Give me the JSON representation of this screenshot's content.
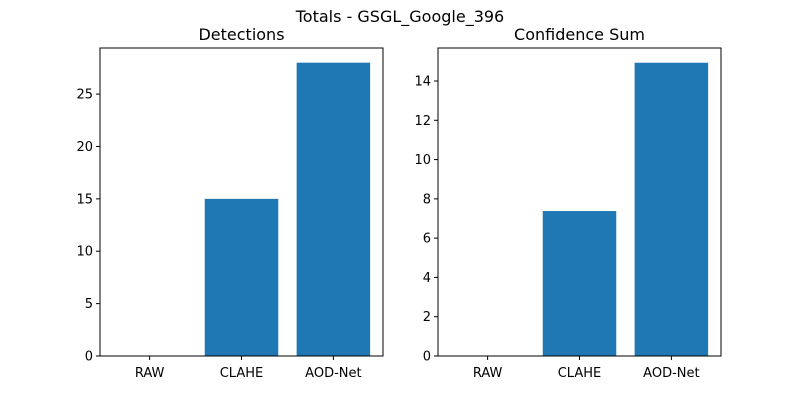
{
  "figure_title": "Totals - GSGL_Google_396",
  "colors": {
    "bar": "#1f77b4",
    "axis": "#000000",
    "background": "#ffffff"
  },
  "chart_data": [
    {
      "type": "bar",
      "title": "Detections",
      "xlabel": "",
      "ylabel": "",
      "categories": [
        "RAW",
        "CLAHE",
        "AOD-Net"
      ],
      "values": [
        0,
        15,
        28
      ],
      "ylim": [
        0,
        29.4
      ],
      "yticks": [
        0,
        5,
        10,
        15,
        20,
        25
      ],
      "grid": false,
      "legend": "none"
    },
    {
      "type": "bar",
      "title": "Confidence Sum",
      "xlabel": "",
      "ylabel": "",
      "categories": [
        "RAW",
        "CLAHE",
        "AOD-Net"
      ],
      "values": [
        0,
        7.38,
        14.93
      ],
      "ylim": [
        0,
        15.68
      ],
      "yticks": [
        0,
        2,
        4,
        6,
        8,
        10,
        12,
        14
      ],
      "grid": false,
      "legend": "none"
    }
  ]
}
